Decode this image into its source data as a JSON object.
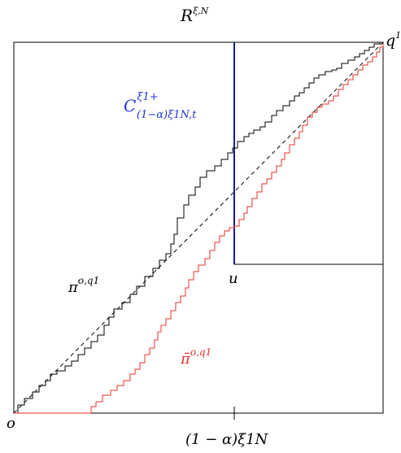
{
  "labels": {
    "region": "R",
    "region_sup": "ξ,N",
    "endpoint": "q",
    "endpoint_sup": "1",
    "origin": "o",
    "corner": "u",
    "cell_main": "C",
    "cell_sup": "ξ1+",
    "cell_sub": "(1−α)ξ1N,t",
    "path_black_main": "π",
    "path_black_sup": "o,q1",
    "path_red_main": "π̄",
    "path_red_sup": "o,q1",
    "axis_tick": "(1 − α)ξ1N"
  },
  "colors": {
    "frame": "#000000",
    "black_path": "#000000",
    "red_path": "#e8302a",
    "blue_line": "#1a1a8c",
    "blue_label": "#2233dd",
    "red_label": "#e8302a"
  }
}
